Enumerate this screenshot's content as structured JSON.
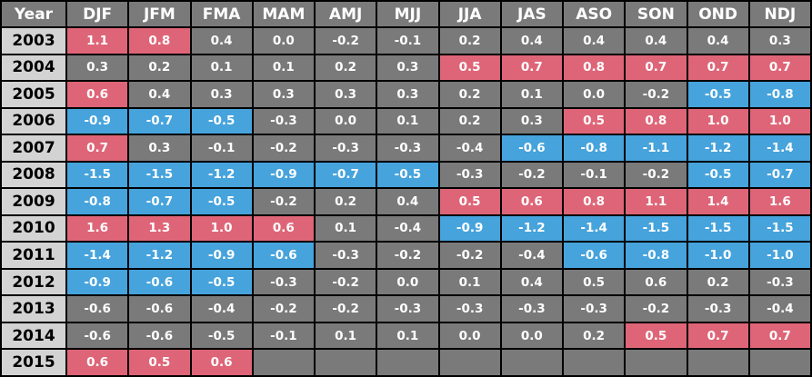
{
  "table": {
    "header": [
      "Year",
      "DJF",
      "JFM",
      "FMA",
      "MAM",
      "AMJ",
      "MJJ",
      "JJA",
      "JAS",
      "ASO",
      "SON",
      "OND",
      "NDJ"
    ],
    "rows": [
      {
        "year": "2003",
        "values": [
          "1.1",
          "0.8",
          "0.4",
          "0.0",
          "-0.2",
          "-0.1",
          "0.2",
          "0.4",
          "0.4",
          "0.4",
          "0.4",
          "0.3"
        ],
        "phase": [
          "warm",
          "warm",
          "neutral",
          "neutral",
          "neutral",
          "neutral",
          "neutral",
          "neutral",
          "neutral",
          "neutral",
          "neutral",
          "neutral"
        ]
      },
      {
        "year": "2004",
        "values": [
          "0.3",
          "0.2",
          "0.1",
          "0.1",
          "0.2",
          "0.3",
          "0.5",
          "0.7",
          "0.8",
          "0.7",
          "0.7",
          "0.7"
        ],
        "phase": [
          "neutral",
          "neutral",
          "neutral",
          "neutral",
          "neutral",
          "neutral",
          "warm",
          "warm",
          "warm",
          "warm",
          "warm",
          "warm"
        ]
      },
      {
        "year": "2005",
        "values": [
          "0.6",
          "0.4",
          "0.3",
          "0.3",
          "0.3",
          "0.3",
          "0.2",
          "0.1",
          "0.0",
          "-0.2",
          "-0.5",
          "-0.8"
        ],
        "phase": [
          "warm",
          "neutral",
          "neutral",
          "neutral",
          "neutral",
          "neutral",
          "neutral",
          "neutral",
          "neutral",
          "neutral",
          "cool",
          "cool"
        ]
      },
      {
        "year": "2006",
        "values": [
          "-0.9",
          "-0.7",
          "-0.5",
          "-0.3",
          "0.0",
          "0.1",
          "0.2",
          "0.3",
          "0.5",
          "0.8",
          "1.0",
          "1.0"
        ],
        "phase": [
          "cool",
          "cool",
          "cool",
          "neutral",
          "neutral",
          "neutral",
          "neutral",
          "neutral",
          "warm",
          "warm",
          "warm",
          "warm"
        ]
      },
      {
        "year": "2007",
        "values": [
          "0.7",
          "0.3",
          "-0.1",
          "-0.2",
          "-0.3",
          "-0.3",
          "-0.4",
          "-0.6",
          "-0.8",
          "-1.1",
          "-1.2",
          "-1.4"
        ],
        "phase": [
          "warm",
          "neutral",
          "neutral",
          "neutral",
          "neutral",
          "neutral",
          "neutral",
          "cool",
          "cool",
          "cool",
          "cool",
          "cool"
        ]
      },
      {
        "year": "2008",
        "values": [
          "-1.5",
          "-1.5",
          "-1.2",
          "-0.9",
          "-0.7",
          "-0.5",
          "-0.3",
          "-0.2",
          "-0.1",
          "-0.2",
          "-0.5",
          "-0.7"
        ],
        "phase": [
          "cool",
          "cool",
          "cool",
          "cool",
          "cool",
          "cool",
          "neutral",
          "neutral",
          "neutral",
          "neutral",
          "cool",
          "cool"
        ]
      },
      {
        "year": "2009",
        "values": [
          "-0.8",
          "-0.7",
          "-0.5",
          "-0.2",
          "0.2",
          "0.4",
          "0.5",
          "0.6",
          "0.8",
          "1.1",
          "1.4",
          "1.6"
        ],
        "phase": [
          "cool",
          "cool",
          "cool",
          "neutral",
          "neutral",
          "neutral",
          "warm",
          "warm",
          "warm",
          "warm",
          "warm",
          "warm"
        ]
      },
      {
        "year": "2010",
        "values": [
          "1.6",
          "1.3",
          "1.0",
          "0.6",
          "0.1",
          "-0.4",
          "-0.9",
          "-1.2",
          "-1.4",
          "-1.5",
          "-1.5",
          "-1.5"
        ],
        "phase": [
          "warm",
          "warm",
          "warm",
          "warm",
          "neutral",
          "neutral",
          "cool",
          "cool",
          "cool",
          "cool",
          "cool",
          "cool"
        ]
      },
      {
        "year": "2011",
        "values": [
          "-1.4",
          "-1.2",
          "-0.9",
          "-0.6",
          "-0.3",
          "-0.2",
          "-0.2",
          "-0.4",
          "-0.6",
          "-0.8",
          "-1.0",
          "-1.0"
        ],
        "phase": [
          "cool",
          "cool",
          "cool",
          "cool",
          "neutral",
          "neutral",
          "neutral",
          "neutral",
          "cool",
          "cool",
          "cool",
          "cool"
        ]
      },
      {
        "year": "2012",
        "values": [
          "-0.9",
          "-0.6",
          "-0.5",
          "-0.3",
          "-0.2",
          "0.0",
          "0.1",
          "0.4",
          "0.5",
          "0.6",
          "0.2",
          "-0.3"
        ],
        "phase": [
          "cool",
          "cool",
          "cool",
          "neutral",
          "neutral",
          "neutral",
          "neutral",
          "neutral",
          "neutral",
          "neutral",
          "neutral",
          "neutral"
        ]
      },
      {
        "year": "2013",
        "values": [
          "-0.6",
          "-0.6",
          "-0.4",
          "-0.2",
          "-0.2",
          "-0.3",
          "-0.3",
          "-0.3",
          "-0.3",
          "-0.2",
          "-0.3",
          "-0.4"
        ],
        "phase": [
          "neutral",
          "neutral",
          "neutral",
          "neutral",
          "neutral",
          "neutral",
          "neutral",
          "neutral",
          "neutral",
          "neutral",
          "neutral",
          "neutral"
        ]
      },
      {
        "year": "2014",
        "values": [
          "-0.6",
          "-0.6",
          "-0.5",
          "-0.1",
          "0.1",
          "0.1",
          "0.0",
          "0.0",
          "0.2",
          "0.5",
          "0.7",
          "0.7"
        ],
        "phase": [
          "neutral",
          "neutral",
          "neutral",
          "neutral",
          "neutral",
          "neutral",
          "neutral",
          "neutral",
          "neutral",
          "warm",
          "warm",
          "warm"
        ]
      },
      {
        "year": "2015",
        "values": [
          "0.6",
          "0.5",
          "0.6",
          "",
          "",
          "",
          "",
          "",
          "",
          "",
          "",
          ""
        ],
        "phase": [
          "warm",
          "warm",
          "warm",
          "blank",
          "blank",
          "blank",
          "blank",
          "blank",
          "blank",
          "blank",
          "blank",
          "blank"
        ]
      }
    ]
  },
  "colors": {
    "warm": "#de6577",
    "cool": "#46a3dc",
    "neutral": "#7a7a7a",
    "year_cell": "#d3d3d3",
    "grid": "#000000"
  }
}
